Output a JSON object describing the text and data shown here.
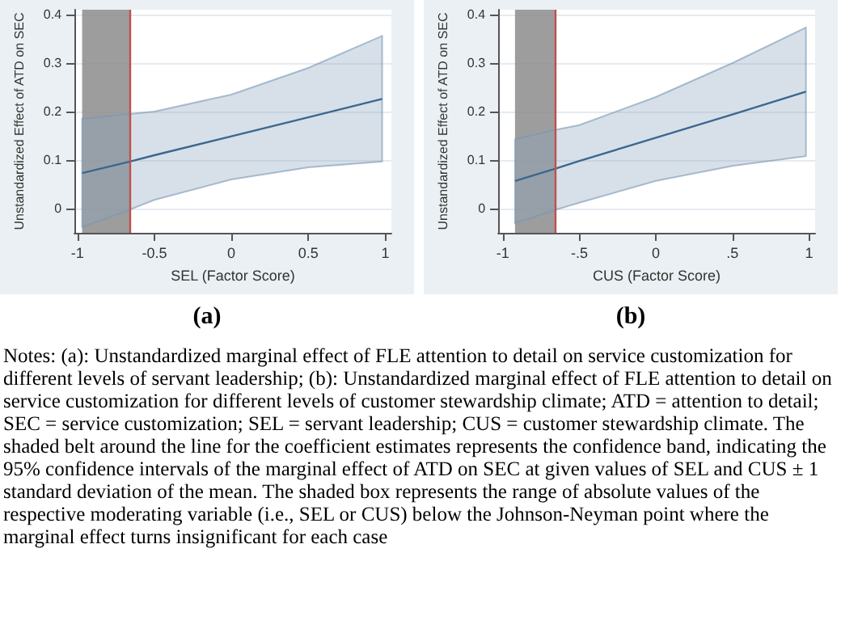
{
  "chart_data": [
    {
      "type": "line",
      "title": "(a)",
      "xlabel": "SEL (Factor Score)",
      "ylabel": "Unstandardized Effect of ATD on SEC",
      "x": [
        -0.97,
        -0.66,
        -0.5,
        0,
        0.5,
        0.98
      ],
      "series": [
        {
          "color": "#3b6790",
          "values": [
            0.073,
            0.097,
            0.11,
            0.149,
            0.188,
            0.226
          ],
          "lower": [
            -0.038,
            -0.002,
            0.018,
            0.06,
            0.085,
            0.097
          ],
          "upper": [
            0.185,
            0.195,
            0.2,
            0.235,
            0.29,
            0.356
          ]
        }
      ],
      "xlim": [
        -1.02,
        1.04
      ],
      "xticks": [
        -1,
        -0.5,
        0,
        0.5,
        1
      ],
      "ylim": [
        -0.05,
        0.41
      ],
      "yticks": [
        0,
        0.1,
        0.2,
        0.3,
        0.4
      ],
      "grid": "y",
      "marker": "none",
      "line_style": "solid",
      "bands": [
        {
          "axis": "x",
          "from": -0.97,
          "to": -0.66,
          "color": "#8c8c8c"
        }
      ],
      "ref_lines": [
        {
          "axis": "x",
          "value": -0.66,
          "color": "#c0504d"
        }
      ]
    },
    {
      "type": "line",
      "title": "(b)",
      "xlabel": "CUS (Factor Score)",
      "ylabel": "Unstandardized Effect of ATD on SEC",
      "x": [
        -0.92,
        -0.66,
        -0.5,
        0,
        0.5,
        0.98
      ],
      "series": [
        {
          "color": "#3b6790",
          "values": [
            0.057,
            0.082,
            0.098,
            0.146,
            0.194,
            0.241
          ],
          "lower": [
            -0.03,
            -0.003,
            0.012,
            0.057,
            0.088,
            0.108
          ],
          "upper": [
            0.143,
            0.162,
            0.172,
            0.23,
            0.3,
            0.373
          ]
        }
      ],
      "xlim": [
        -1.03,
        1.04
      ],
      "xticks": [
        -1,
        {
          "value": -0.5,
          "label": "-.5"
        },
        0,
        {
          "value": 0.5,
          "label": ".5"
        },
        1
      ],
      "ylim": [
        -0.05,
        0.41
      ],
      "yticks": [
        0,
        0.1,
        0.2,
        0.3,
        0.4
      ],
      "grid": "y",
      "marker": "none",
      "line_style": "solid",
      "bands": [
        {
          "axis": "x",
          "from": -0.92,
          "to": -0.66,
          "color": "#8c8c8c"
        }
      ],
      "ref_lines": [
        {
          "axis": "x",
          "value": -0.66,
          "color": "#c0504d"
        }
      ],
      "annotations": [
        "Notes: (a): Unstandardized marginal effect of FLE attention to detail on service customization for different levels of servant leadership; (b): Unstandardized marginal effect of FLE attention to detail on service customization for different levels of customer stewardship climate; ATD = attention to detail; SEC = service customization; SEL = servant leadership; CUS = customer stewardship climate. The shaded belt around the line for the coefficient estimates represents the confidence band, indicating the 95% confidence intervals of the marginal effect of ATD on SEC at given values of SEL and CUS ± 1 standard deviation of the mean. The shaded box represents the range of absolute values of the respective moderating variable (i.e., SEL or CUS) below the Johnson-Neyman point where the marginal effect turns insignificant for each case"
      ]
    }
  ]
}
